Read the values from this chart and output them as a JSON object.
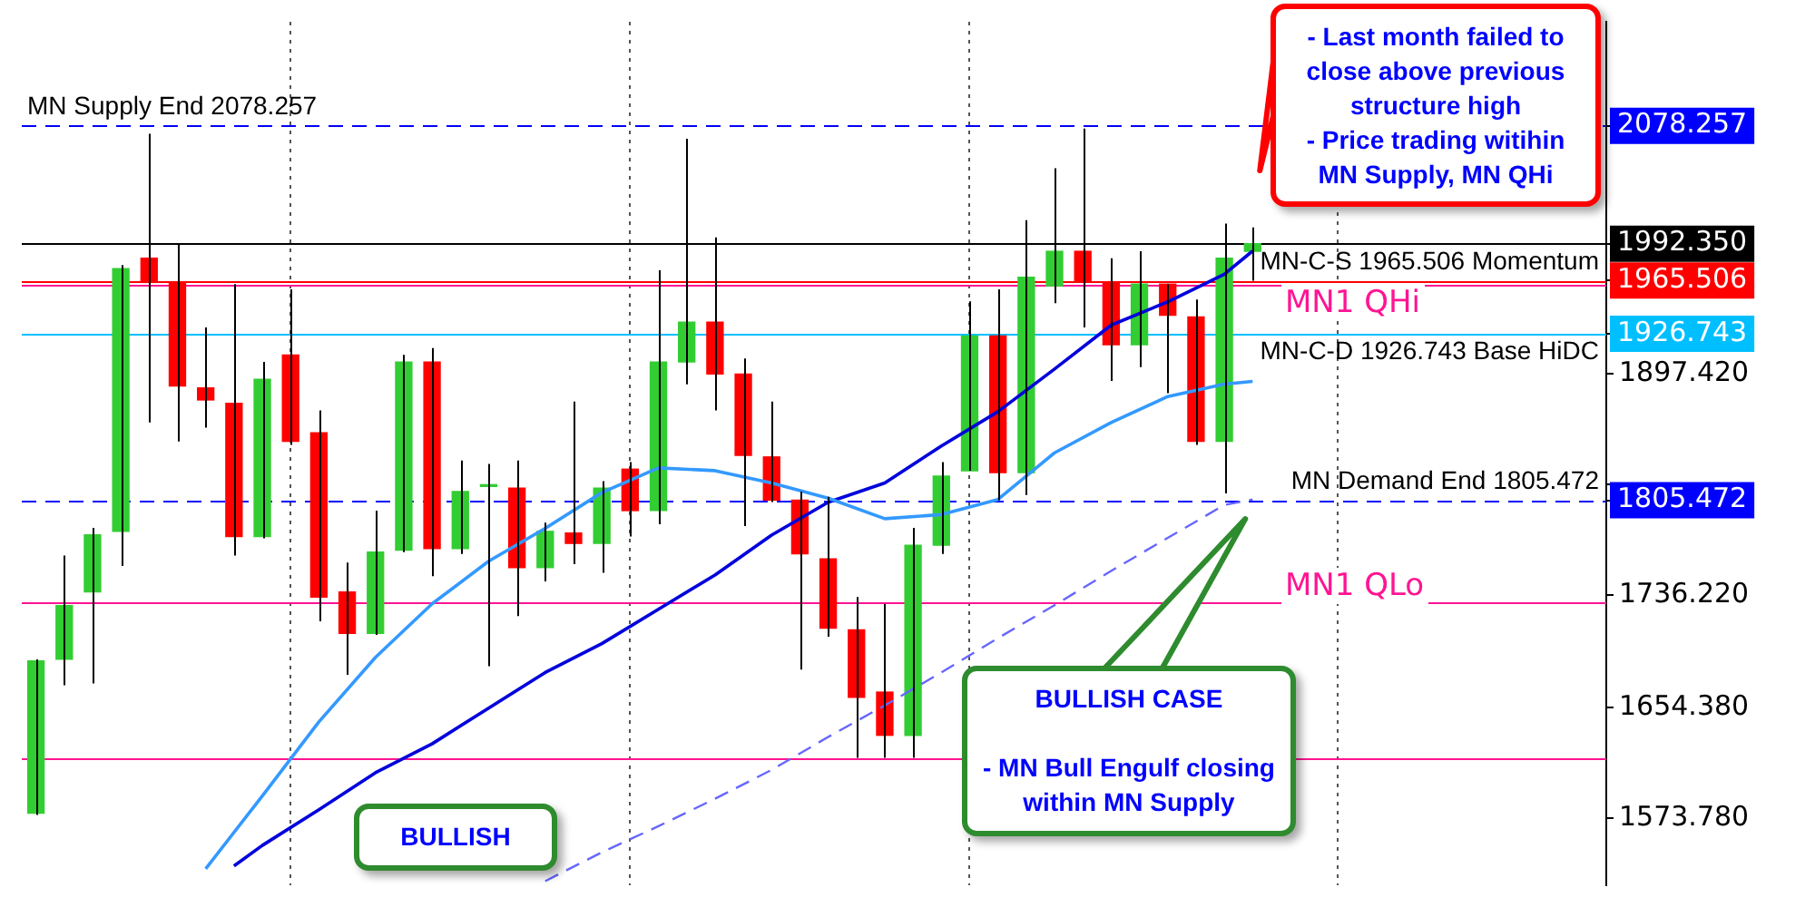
{
  "chart_data": {
    "type": "candlestick",
    "categories": [
      null,
      null,
      null,
      null,
      null,
      null,
      null,
      null,
      null,
      null,
      null,
      null,
      null,
      null,
      null,
      null,
      null,
      null,
      null,
      null,
      null,
      null,
      null,
      null,
      null,
      null,
      null,
      null,
      null,
      null,
      null,
      null,
      null,
      null,
      null,
      null,
      null,
      null,
      null,
      null,
      null,
      null,
      null,
      null,
      null,
      null,
      null,
      null,
      null,
      null,
      null,
      null,
      null,
      null,
      null,
      null
    ],
    "ohlc": [
      [
        1577.5,
        1689.6,
        1576.2,
        1688.4
      ],
      [
        1689.6,
        1765.2,
        1670.7,
        1728.7
      ],
      [
        1738.7,
        1785.3,
        1672.0,
        1780.3
      ],
      [
        1782.8,
        1976.7,
        1757.6,
        1974.2
      ],
      [
        1981.8,
        2072.4,
        1862.1,
        1964.1
      ],
      [
        1964.1,
        1991.9,
        1848.3,
        1888.6
      ],
      [
        1887.3,
        1931.4,
        1858.4,
        1878.5
      ],
      [
        1876.0,
        1962.9,
        1765.2,
        1779.0
      ],
      [
        1779.0,
        1906.2,
        1777.8,
        1893.6
      ],
      [
        1911.3,
        1959.1,
        1845.8,
        1848.3
      ],
      [
        1854.6,
        1870.9,
        1717.3,
        1734.9
      ],
      [
        1738.7,
        1760.1,
        1678.3,
        1708.5
      ],
      [
        1708.5,
        1797.9,
        1707.3,
        1767.7
      ],
      [
        1769.0,
        1911.3,
        1767.7,
        1906.2
      ],
      [
        1906.2,
        1916.3,
        1750.1,
        1770.2
      ],
      [
        1770.2,
        1834.4,
        1766.4,
        1811.8
      ],
      [
        1815.5,
        1831.9,
        1684.6,
        1815.5
      ],
      [
        1814.3,
        1834.4,
        1721.1,
        1756.4
      ],
      [
        1756.4,
        1789.1,
        1746.3,
        1782.8
      ],
      [
        1781.6,
        1877.3,
        1758.9,
        1774.0
      ],
      [
        1774.0,
        1819.3,
        1752.6,
        1814.3
      ],
      [
        1828.1,
        1833.2,
        1779.0,
        1797.9
      ],
      [
        1797.9,
        1973.0,
        1787.9,
        1906.2
      ],
      [
        1906.2,
        2068.7,
        1889.8,
        1935.2
      ],
      [
        1935.2,
        1996.9,
        1870.9,
        1897.4
      ],
      [
        1897.4,
        1908.7,
        1786.6,
        1838.2
      ],
      [
        1837.0,
        1877.3,
        1804.2,
        1805.5
      ],
      [
        1805.5,
        1811.8,
        1682.1,
        1766.4
      ],
      [
        1762.7,
        1808.0,
        1706.0,
        1712.3
      ],
      [
        1711.0,
        1734.9,
        1617.8,
        1661.9
      ],
      [
        1665.7,
        1729.9,
        1617.8,
        1634.2
      ],
      [
        1634.2,
        1785.3,
        1617.8,
        1772.7
      ],
      [
        1772.7,
        1833.2,
        1766.4,
        1823.1
      ],
      [
        1826.9,
        1950.3,
        1826.9,
        1925.1
      ],
      [
        1925.1,
        1959.1,
        1805.5,
        1825.6
      ],
      [
        1825.6,
        2009.5,
        1809.3,
        1967.9
      ],
      [
        1961.6,
        2047.3,
        1949.0,
        1986.8
      ],
      [
        1986.8,
        2076.2,
        1931.4,
        1965.4
      ],
      [
        1964.1,
        1981.8,
        1892.4,
        1918.8
      ],
      [
        1918.8,
        1986.8,
        1902.4,
        1962.9
      ],
      [
        1962.9,
        1962.9,
        1883.5,
        1940.2
      ],
      [
        1939.0,
        1951.6,
        1845.8,
        1848.3
      ],
      [
        1848.3,
        2007.0,
        1810.5,
        1981.8
      ],
      [
        1986.8,
        2004.2,
        1965.4,
        1992.35
      ],
      null,
      null,
      null,
      null,
      null,
      null,
      null,
      null,
      null,
      null,
      null,
      null
    ],
    "colors": [
      "#32cd32",
      "#32cd32",
      "#32cd32",
      "#32cd32",
      "#ff0000",
      "#ff0000",
      "#ff0000",
      "#ff0000",
      "#32cd32",
      "#ff0000",
      "#ff0000",
      "#ff0000",
      "#32cd32",
      "#32cd32",
      "#ff0000",
      "#32cd32",
      "#32cd32",
      "#ff0000",
      "#32cd32",
      "#ff0000",
      "#32cd32",
      "#ff0000",
      "#32cd32",
      "#32cd32",
      "#ff0000",
      "#ff0000",
      "#ff0000",
      "#ff0000",
      "#ff0000",
      "#ff0000",
      "#ff0000",
      "#32cd32",
      "#32cd32",
      "#32cd32",
      "#ff0000",
      "#32cd32",
      "#32cd32",
      "#ff0000",
      "#ff0000",
      "#32cd32",
      "#ff0000",
      "#ff0000",
      "#32cd32",
      "#32cd32",
      null,
      null,
      null,
      null,
      null,
      null,
      null,
      null,
      null,
      null,
      null,
      null
    ],
    "series": [
      {
        "type": "line",
        "color": "#3399ff",
        "values": [
          null,
          null,
          null,
          null,
          null,
          null,
          1537,
          null,
          1590,
          null,
          1644,
          null,
          1691,
          null,
          1730,
          null,
          1761,
          null,
          1785,
          null,
          1811,
          null,
          1829,
          null,
          1827,
          null,
          1818,
          null,
          1807,
          null,
          1792,
          null,
          1795,
          null,
          1806,
          null,
          1840,
          null,
          1862,
          null,
          1881,
          null,
          1890,
          1892,
          null,
          null,
          null,
          null,
          null,
          null,
          null,
          null,
          null,
          null,
          null,
          null
        ]
      },
      {
        "type": "line",
        "color": "#0000dd",
        "values": [
          null,
          null,
          null,
          null,
          null,
          null,
          null,
          1539,
          1554,
          null,
          1580,
          null,
          1607,
          null,
          1628,
          null,
          1654,
          null,
          1680,
          null,
          1701,
          null,
          1726,
          null,
          1751,
          null,
          1780,
          null,
          1804,
          null,
          1818,
          null,
          1845,
          null,
          1870,
          null,
          1901,
          null,
          1933,
          null,
          1950,
          null,
          1970,
          1987,
          null,
          null,
          null,
          null,
          null,
          null,
          null,
          null,
          null,
          null,
          null,
          null
        ]
      },
      {
        "type": "line",
        "color": "#6666ff",
        "line_style": "dashed",
        "values": [
          null,
          null,
          null,
          null,
          null,
          null,
          null,
          null,
          null,
          null,
          null,
          null,
          null,
          null,
          null,
          null,
          null,
          null,
          1528,
          null,
          1549,
          null,
          1568,
          null,
          1588,
          null,
          1609,
          null,
          1633,
          null,
          1656,
          null,
          1680,
          null,
          1705,
          null,
          1729,
          null,
          1754,
          null,
          1778,
          null,
          1802,
          1806,
          null,
          null,
          null,
          null,
          null,
          null,
          null,
          null,
          null,
          null,
          null,
          null
        ]
      }
    ],
    "ylim": [
      1525,
      2154
    ],
    "yticks": [
      {
        "value": 1573.78,
        "label": "1573.780"
      },
      {
        "value": 1654.38,
        "label": "1654.380"
      },
      {
        "value": 1736.22,
        "label": "1736.220"
      },
      {
        "value": 1805.472,
        "label": "1805.472"
      },
      {
        "value": 1816.82,
        "label": null
      },
      {
        "value": 1897.42,
        "label": "1897.420"
      },
      {
        "value": 1926.743,
        "label": "1926.743"
      },
      {
        "value": 1965.506,
        "label": "1965.506"
      },
      {
        "value": 1992.35,
        "label": "1992.350"
      },
      {
        "value": 2078.257,
        "label": "2078.257"
      }
    ],
    "tick_labels": "y",
    "grid": "x",
    "legend": false,
    "ref_lines": [
      {
        "axis": "y",
        "value": 2078.257,
        "label": "MN Supply End 2078.257",
        "color": "#0000ff",
        "line_style": "dashed"
      },
      {
        "axis": "y",
        "value": 1992.35,
        "color": "#000000"
      },
      {
        "axis": "y",
        "value": 1965.506,
        "label": "MN-C-S 1965.506 Momentum",
        "color": "#ff0000"
      },
      {
        "axis": "y",
        "value": 1926.743,
        "label": "MN-C-D 1926.743 Base HiDC",
        "color": "#00bfff"
      },
      {
        "axis": "y",
        "value": 1805.472,
        "label": "MN Demand End 1805.472",
        "color": "#0000ff",
        "line_style": "dashed"
      },
      {
        "axis": "y",
        "value": 1962.9,
        "color": "#ff1493"
      },
      {
        "axis": "y",
        "value": 1731.2,
        "color": "#ff1493"
      },
      {
        "axis": "y",
        "value": 1617.8,
        "color": "#ff1493"
      }
    ],
    "annotations": [
      "MN1 QHi",
      "MN1 QLo",
      "BULLISH",
      "BULLISH CASE\n\n- MN Bull Engulf closing within MN Supply",
      "- Last month failed to close above previous structure high\n- Price trading witihin MN Supply, MN QHi"
    ]
  }
}
